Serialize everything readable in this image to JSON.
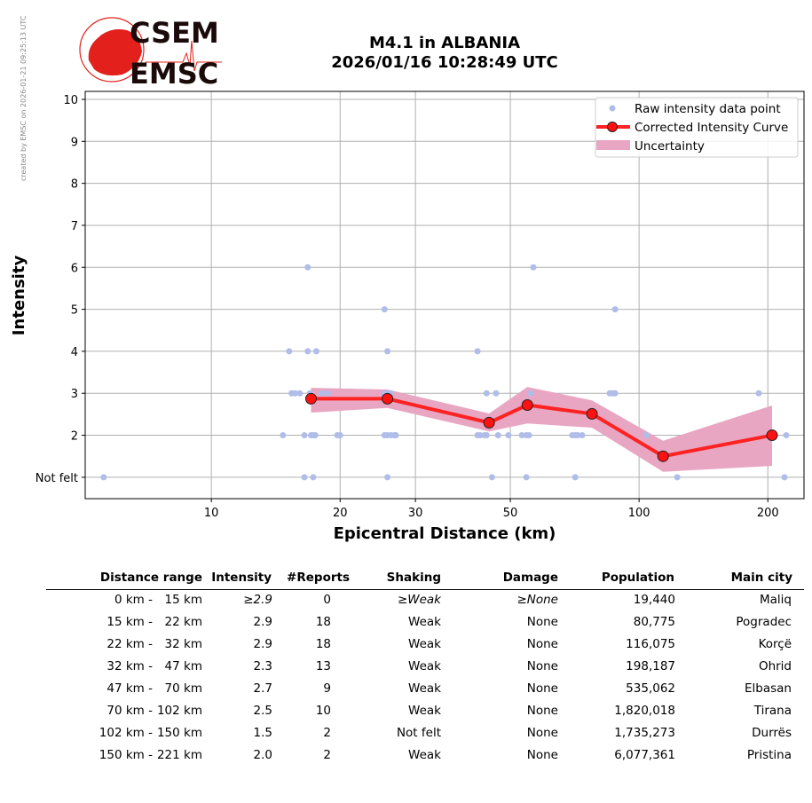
{
  "credit": "created by EMSC on 2026-01-21 09:25:13 UTC",
  "logo": {
    "top": "CSEM",
    "bottom": "EMSC",
    "color": "#e3201b"
  },
  "title": {
    "line1": "M4.1 in ALBANIA",
    "line2": "2026/01/16 10:28:49 UTC"
  },
  "chart_data": {
    "type": "scatter",
    "xlabel": "Epicentral Distance (km)",
    "ylabel": "Intensity",
    "xscale": "log",
    "xlim": [
      5.07,
      243
    ],
    "ylim": [
      0.49,
      10.19
    ],
    "xticks": [
      10,
      20,
      30,
      50,
      100,
      200
    ],
    "xtick_labels": [
      "10",
      "20",
      "30",
      "50",
      "100",
      "200"
    ],
    "yticks": [
      1,
      2,
      3,
      4,
      5,
      6,
      7,
      8,
      9,
      10
    ],
    "ytick_labels": [
      "Not felt",
      "2",
      "3",
      "4",
      "5",
      "6",
      "7",
      "8",
      "9",
      "10"
    ],
    "grid": true,
    "legend_position": "top-right",
    "legend": [
      "Raw intensity data point",
      "Corrected Intensity Curve",
      "Uncertainty"
    ],
    "colors": {
      "raw": "#b0bde9",
      "curve": "#ff2222",
      "marker": "#ff1111",
      "band": "#e8a6c2"
    },
    "raw_points": [
      [
        5.6,
        1
      ],
      [
        14.7,
        2
      ],
      [
        15.2,
        4
      ],
      [
        15.4,
        3
      ],
      [
        15.7,
        3
      ],
      [
        16.1,
        3
      ],
      [
        16.5,
        2
      ],
      [
        16.5,
        1
      ],
      [
        16.8,
        6
      ],
      [
        16.8,
        4
      ],
      [
        17.0,
        3
      ],
      [
        17.1,
        2
      ],
      [
        17.3,
        1
      ],
      [
        17.3,
        2
      ],
      [
        17.5,
        2
      ],
      [
        17.6,
        4
      ],
      [
        18.1,
        3
      ],
      [
        18.7,
        3
      ],
      [
        19.7,
        2
      ],
      [
        20.0,
        2
      ],
      [
        25.4,
        5
      ],
      [
        25.4,
        3
      ],
      [
        25.8,
        4
      ],
      [
        25.8,
        3
      ],
      [
        25.8,
        1
      ],
      [
        25.4,
        2
      ],
      [
        25.8,
        2
      ],
      [
        26.3,
        2
      ],
      [
        26.8,
        2
      ],
      [
        27.0,
        2
      ],
      [
        26.3,
        3
      ],
      [
        41.9,
        4
      ],
      [
        41.9,
        2
      ],
      [
        42.5,
        2
      ],
      [
        43.5,
        2
      ],
      [
        44.0,
        2
      ],
      [
        44.0,
        3
      ],
      [
        45.3,
        1
      ],
      [
        46.3,
        3
      ],
      [
        46.8,
        2
      ],
      [
        49.5,
        2
      ],
      [
        53.2,
        2
      ],
      [
        54.5,
        1
      ],
      [
        54.5,
        2
      ],
      [
        55.3,
        2
      ],
      [
        55.8,
        3
      ],
      [
        56.6,
        6
      ],
      [
        69.8,
        2
      ],
      [
        70.9,
        1
      ],
      [
        70.9,
        2
      ],
      [
        71.9,
        2
      ],
      [
        73.6,
        2
      ],
      [
        85.4,
        3
      ],
      [
        86.7,
        3
      ],
      [
        87.9,
        3
      ],
      [
        87.9,
        5
      ],
      [
        104,
        2
      ],
      [
        122.8,
        1
      ],
      [
        190.5,
        3
      ],
      [
        218.8,
        1
      ],
      [
        220.8,
        2
      ]
    ],
    "curve": {
      "x": [
        17.1,
        25.8,
        44.6,
        54.8,
        77.6,
        113.8,
        204.6
      ],
      "y": [
        2.87,
        2.87,
        2.3,
        2.72,
        2.51,
        1.5,
        2.0
      ]
    },
    "band": {
      "x": [
        17.1,
        25.8,
        44.6,
        54.8,
        77.6,
        113.8,
        204.6
      ],
      "upper": [
        3.13,
        3.09,
        2.52,
        3.15,
        2.83,
        1.87,
        2.71
      ],
      "lower": [
        2.54,
        2.65,
        2.09,
        2.28,
        2.18,
        1.13,
        1.27
      ]
    }
  },
  "table": {
    "headers": [
      "Distance range",
      "Intensity",
      "#Reports",
      "Shaking",
      "Damage",
      "Population",
      "Main city"
    ],
    "rows": [
      {
        "from": "0 km -",
        "to": "15 km",
        "intensity": "≥2.9",
        "reports": "0",
        "shaking": "≥Weak",
        "damage": "≥None",
        "population": "19,440",
        "city": "Maliq"
      },
      {
        "from": "15 km -",
        "to": "22 km",
        "intensity": "2.9",
        "reports": "18",
        "shaking": "Weak",
        "damage": "None",
        "population": "80,775",
        "city": "Pogradec"
      },
      {
        "from": "22 km -",
        "to": "32 km",
        "intensity": "2.9",
        "reports": "18",
        "shaking": "Weak",
        "damage": "None",
        "population": "116,075",
        "city": "Korçë"
      },
      {
        "from": "32 km -",
        "to": "47 km",
        "intensity": "2.3",
        "reports": "13",
        "shaking": "Weak",
        "damage": "None",
        "population": "198,187",
        "city": "Ohrid"
      },
      {
        "from": "47 km -",
        "to": "70 km",
        "intensity": "2.7",
        "reports": "9",
        "shaking": "Weak",
        "damage": "None",
        "population": "535,062",
        "city": "Elbasan"
      },
      {
        "from": "70 km -",
        "to": "102 km",
        "intensity": "2.5",
        "reports": "10",
        "shaking": "Weak",
        "damage": "None",
        "population": "1,820,018",
        "city": "Tirana"
      },
      {
        "from": "102 km -",
        "to": "150 km",
        "intensity": "1.5",
        "reports": "2",
        "shaking": "Not felt",
        "damage": "None",
        "population": "1,735,273",
        "city": "Durrës"
      },
      {
        "from": "150 km -",
        "to": "221 km",
        "intensity": "2.0",
        "reports": "2",
        "shaking": "Weak",
        "damage": "None",
        "population": "6,077,361",
        "city": "Pristina"
      }
    ]
  }
}
